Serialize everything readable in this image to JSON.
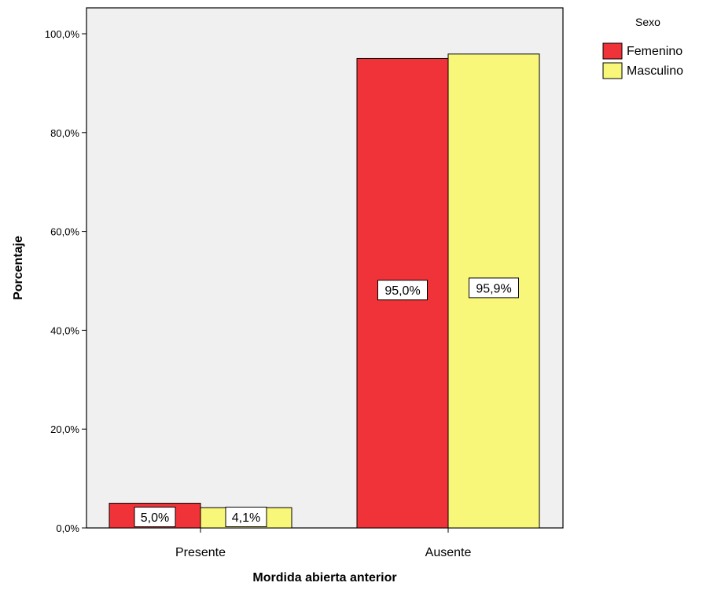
{
  "chart_data": {
    "type": "bar",
    "title": "",
    "xlabel": "Mordida abierta anterior",
    "ylabel": "Porcentaje",
    "categories": [
      "Presente",
      "Ausente"
    ],
    "series": [
      {
        "name": "Femenino",
        "color": "#ef3338",
        "values": [
          5.0,
          95.0
        ],
        "labels": [
          "5,0%",
          "95,0%"
        ]
      },
      {
        "name": "Masculino",
        "color": "#f8f77a",
        "values": [
          4.1,
          95.9
        ],
        "labels": [
          "4,1%",
          "95,9%"
        ]
      }
    ],
    "ylim": [
      0,
      100
    ],
    "yticks": [
      0,
      20,
      40,
      60,
      80,
      100
    ],
    "ytick_labels": [
      "0,0%",
      "20,0%",
      "40,0%",
      "60,0%",
      "80,0%",
      "100,0%"
    ],
    "legend": {
      "title": "Sexo",
      "position": "top-right"
    },
    "grid": false,
    "plot_background": "#f0f0f0"
  }
}
